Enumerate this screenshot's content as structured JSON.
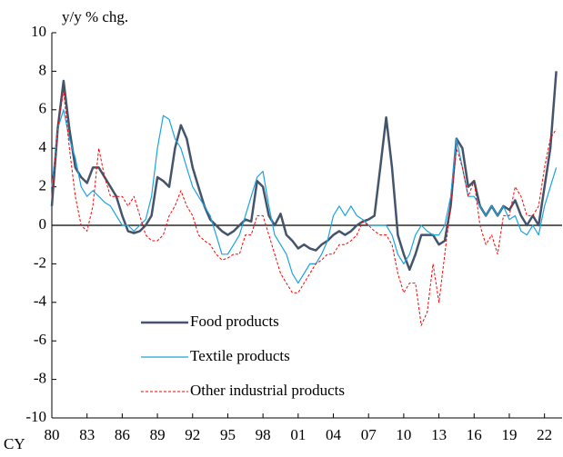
{
  "chart_data": {
    "type": "line",
    "y_axis_label": "y/y % chg.",
    "x_axis_label": "CY",
    "x": [
      1980,
      1980.5,
      1981,
      1981.5,
      1982,
      1982.5,
      1983,
      1983.5,
      1984,
      1984.5,
      1985,
      1985.5,
      1986,
      1986.5,
      1987,
      1987.5,
      1988,
      1988.5,
      1989,
      1989.5,
      1990,
      1990.5,
      1991,
      1991.5,
      1992,
      1992.5,
      1993,
      1993.5,
      1994,
      1994.5,
      1995,
      1995.5,
      1996,
      1996.5,
      1997,
      1997.5,
      1998,
      1998.5,
      1999,
      1999.5,
      2000,
      2000.5,
      2001,
      2001.5,
      2002,
      2002.5,
      2003,
      2003.5,
      2004,
      2004.5,
      2005,
      2005.5,
      2006,
      2006.5,
      2007,
      2007.5,
      2008,
      2008.5,
      2009,
      2009.5,
      2010,
      2010.5,
      2011,
      2011.5,
      2012,
      2012.5,
      2013,
      2013.5,
      2014,
      2014.5,
      2015,
      2015.5,
      2016,
      2016.5,
      2017,
      2017.5,
      2018,
      2018.5,
      2019,
      2019.5,
      2020,
      2020.5,
      2021,
      2021.5,
      2022,
      2022.5,
      2023
    ],
    "series": [
      {
        "name": "Food products",
        "color": "#44546a",
        "width": 2.5,
        "dash": false,
        "values": [
          1,
          5,
          7.5,
          5,
          3,
          2.5,
          2.2,
          3,
          3,
          2.5,
          2,
          1.5,
          0.5,
          -0.3,
          -0.4,
          -0.3,
          0,
          0.5,
          2.5,
          2.3,
          2,
          4,
          5.2,
          4.5,
          3,
          2,
          1,
          0.3,
          0,
          -0.3,
          -0.5,
          -0.3,
          0,
          0.3,
          0.2,
          2.3,
          2,
          0.5,
          0,
          0.6,
          -0.5,
          -0.8,
          -1.2,
          -1,
          -1.2,
          -1.3,
          -1,
          -0.8,
          -0.5,
          -0.3,
          -0.5,
          -0.3,
          0,
          0.2,
          0.3,
          0.5,
          3,
          5.6,
          3,
          -0.5,
          -1.5,
          -2.3,
          -1.5,
          -0.5,
          -0.5,
          -0.5,
          -1,
          -0.8,
          1,
          4.5,
          4,
          2,
          2.3,
          1,
          0.5,
          1,
          0.5,
          1,
          0.8,
          1.3,
          0.5,
          0,
          0.5,
          0,
          2,
          4,
          8
        ]
      },
      {
        "name": "Textile products",
        "color": "#1ca3e0",
        "width": 1.2,
        "dash": false,
        "values": [
          2,
          5,
          6,
          4.5,
          3.5,
          2,
          1.5,
          1.8,
          1.5,
          1.2,
          1,
          0.5,
          0,
          0,
          -0.3,
          0,
          0.3,
          1.5,
          4,
          5.7,
          5.5,
          4.5,
          4,
          3,
          2,
          1.5,
          1,
          0.5,
          -0.5,
          -1.5,
          -1.5,
          -1,
          -0.5,
          0.5,
          1.5,
          2.5,
          2.8,
          1,
          -0.5,
          -1,
          -1.5,
          -2.5,
          -3,
          -2.5,
          -2,
          -2,
          -1.5,
          -0.8,
          0.5,
          1,
          0.5,
          1,
          0.5,
          0.3,
          0,
          0,
          0,
          0,
          -0.5,
          -1.5,
          -2,
          -1.5,
          -0.5,
          0,
          -0.3,
          -0.5,
          -0.5,
          0,
          1.5,
          4.5,
          3,
          1.5,
          1.5,
          1,
          0.5,
          1,
          0.5,
          1,
          0.3,
          0.5,
          -0.3,
          -0.5,
          0,
          -0.5,
          1,
          2,
          3
        ]
      },
      {
        "name": "Other industrial products",
        "color": "#ff0000",
        "width": 1,
        "dash": true,
        "values": [
          1.5,
          5,
          7,
          4,
          1.5,
          0,
          -0.3,
          1,
          4,
          2.5,
          1.5,
          1.5,
          1.5,
          1,
          1.5,
          0.5,
          -0.5,
          -0.8,
          -0.8,
          -0.5,
          0.5,
          1,
          1.8,
          1,
          0.5,
          -0.5,
          -0.8,
          -1,
          -1.5,
          -1.8,
          -1.7,
          -1.5,
          -1.5,
          -0.5,
          -0.5,
          0.5,
          0.5,
          -0.5,
          -1.5,
          -2.5,
          -3,
          -3.5,
          -3.5,
          -3,
          -2.5,
          -2,
          -1.8,
          -1.5,
          -1.5,
          -1,
          -1,
          -0.8,
          -0.5,
          0.2,
          0,
          -0.3,
          -0.5,
          -0.5,
          -1,
          -2.5,
          -3.5,
          -3,
          -3,
          -5.2,
          -4.5,
          -2,
          -4,
          -1.5,
          1,
          4,
          3,
          1.5,
          2.3,
          0,
          -1,
          -0.5,
          -1.5,
          0.5,
          0.5,
          2,
          1.5,
          0.5,
          0.5,
          1,
          3,
          4.5,
          5
        ]
      }
    ],
    "xlim": [
      1980,
      2023.5
    ],
    "ylim": [
      -10,
      10
    ],
    "yticks": [
      -10,
      -8,
      -6,
      -4,
      -2,
      0,
      2,
      4,
      6,
      8,
      10
    ],
    "xticks": [
      {
        "value": 1980,
        "label": "80"
      },
      {
        "value": 1983,
        "label": "83"
      },
      {
        "value": 1986,
        "label": "86"
      },
      {
        "value": 1989,
        "label": "89"
      },
      {
        "value": 1992,
        "label": "92"
      },
      {
        "value": 1995,
        "label": "95"
      },
      {
        "value": 1998,
        "label": "98"
      },
      {
        "value": 2001,
        "label": "01"
      },
      {
        "value": 2004,
        "label": "04"
      },
      {
        "value": 2007,
        "label": "07"
      },
      {
        "value": 2010,
        "label": "10"
      },
      {
        "value": 2013,
        "label": "13"
      },
      {
        "value": 2016,
        "label": "16"
      },
      {
        "value": 2019,
        "label": "19"
      },
      {
        "value": 2022,
        "label": "22"
      }
    ],
    "legend": "lower center",
    "grid": false
  }
}
